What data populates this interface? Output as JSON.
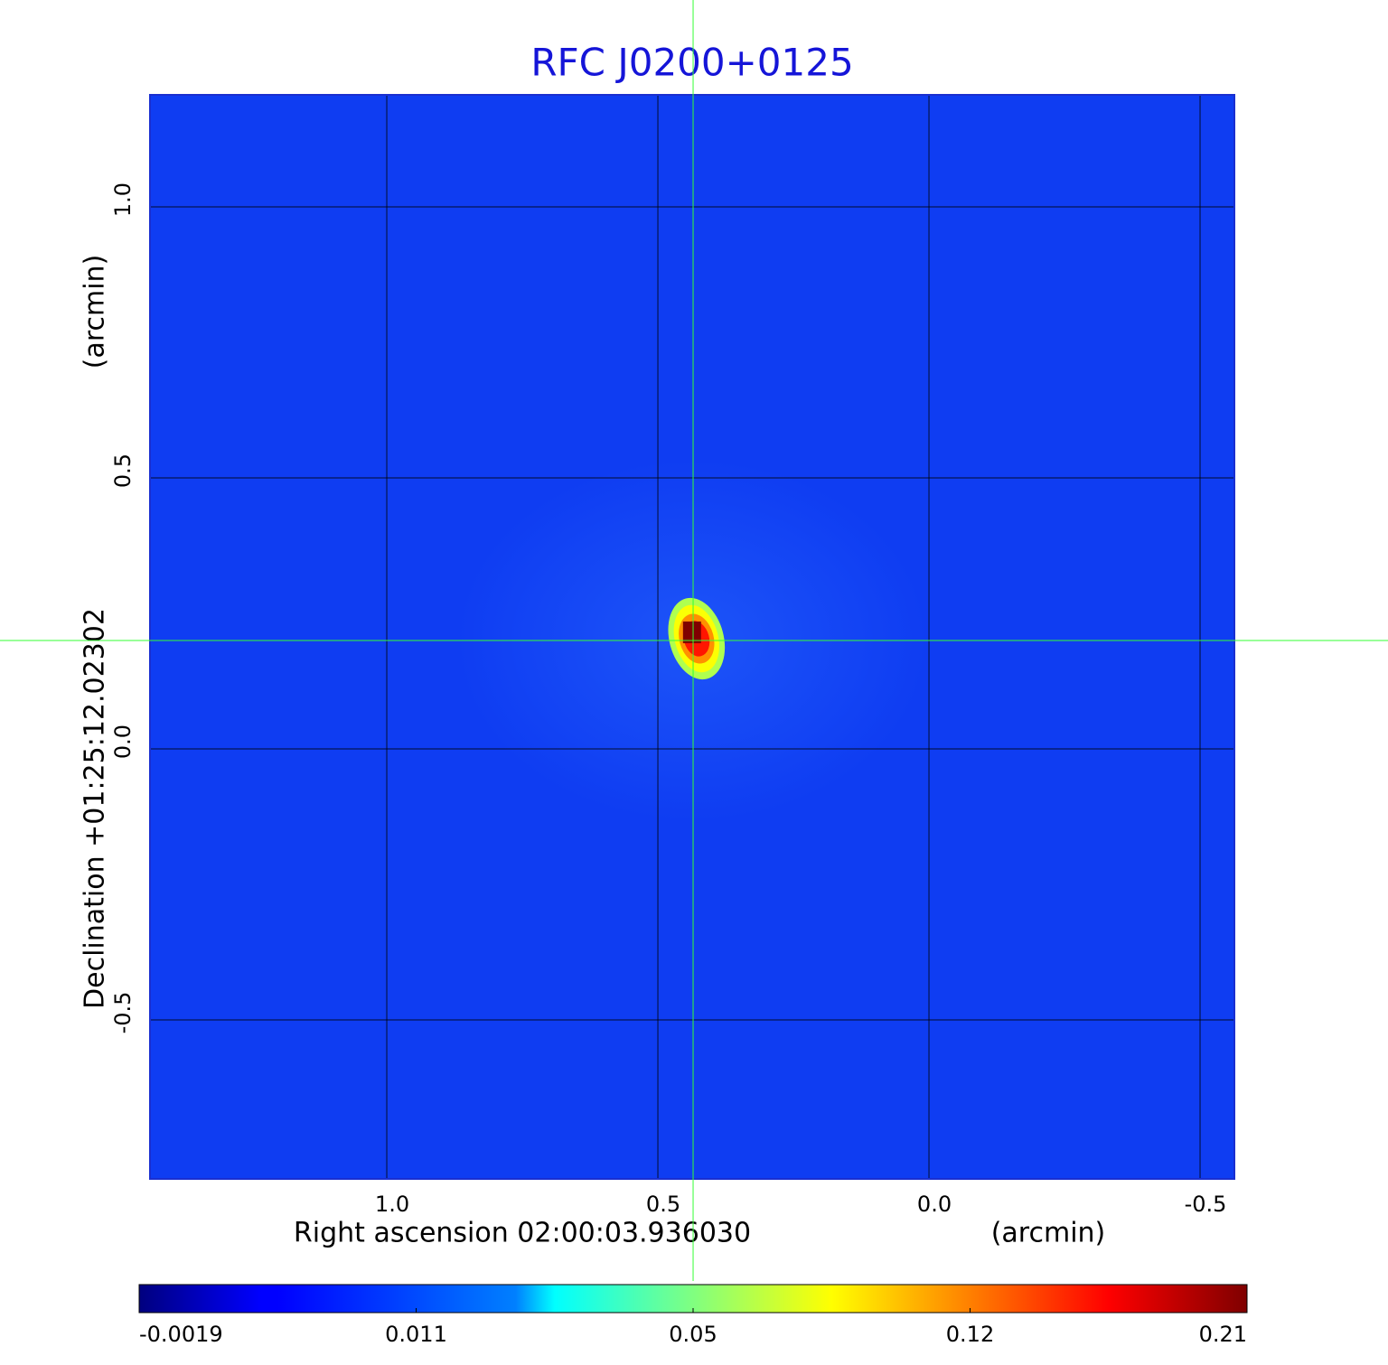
{
  "chart_data": {
    "type": "image",
    "title": "RFC J0200+0125",
    "x_label": "Right ascension  02:00:03.936030",
    "x_unit": "(arcmin)",
    "y_label": "Declination  +01:25:12.02302",
    "y_unit": "(arcmin)",
    "xlim": [
      1.4367,
      -0.5633
    ],
    "ylim": [
      -0.7933,
      1.2067
    ],
    "xticks": [
      {
        "value": 1,
        "label": "1.0"
      },
      0.5,
      {
        "value": 0,
        "label": "0.0"
      },
      -0.5
    ],
    "yticks": [
      -0.5,
      {
        "value": 0,
        "label": "0.0"
      },
      0.5,
      {
        "value": 1,
        "label": "1.0"
      }
    ],
    "grid": true,
    "colormap": "jet",
    "colorbar_ticks": [
      -0.0019,
      0.011,
      0.05,
      0.12,
      0.21
    ],
    "source": {
      "x": 0.437,
      "y": 0.215,
      "peak": 0.21
    },
    "crosshair": {
      "x": 0.435,
      "y": 0.2,
      "color": "#33ff33"
    }
  }
}
